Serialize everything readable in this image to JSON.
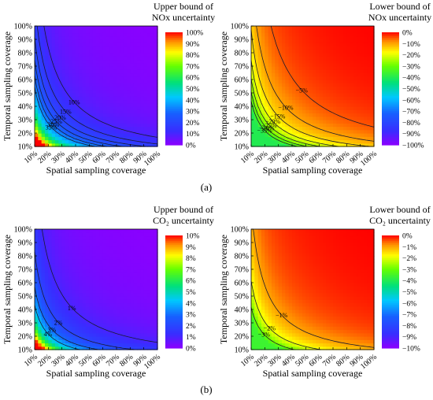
{
  "figure": {
    "panel_labels": [
      "(a)",
      "(b)"
    ]
  },
  "chart_data": [
    {
      "type": "heatmap",
      "colorbar_title": [
        "Upper bound of",
        "NOx uncertainty"
      ],
      "xlabel": "Spatial sampling coverage",
      "ylabel": "Temporal sampling coverage",
      "x_ticks": [
        "10%",
        "20%",
        "30%",
        "40%",
        "50%",
        "60%",
        "70%",
        "80%",
        "90%",
        "100%"
      ],
      "y_ticks": [
        "10%",
        "20%",
        "30%",
        "40%",
        "50%",
        "60%",
        "70%",
        "80%",
        "90%",
        "100%"
      ],
      "colorbar_ticks": [
        "100%",
        "90%",
        "80%",
        "70%",
        "60%",
        "50%",
        "40%",
        "30%",
        "20%",
        "10%",
        "0%"
      ],
      "colorbar_range": [
        0,
        100
      ],
      "colorbar_reversed": false,
      "model": {
        "max": 100,
        "c": 2
      },
      "contour_levels": [
        10,
        15,
        20,
        25,
        30,
        35
      ],
      "contour_labels": [
        "10%",
        "15%",
        "20%",
        "25%",
        "30%",
        "35%"
      ],
      "grid": false
    },
    {
      "type": "heatmap",
      "colorbar_title": [
        "Lower bound of",
        "NOx uncertainty"
      ],
      "xlabel": "Spatial sampling coverage",
      "ylabel": "Temporal sampling coverage",
      "x_ticks": [
        "10%",
        "20%",
        "30%",
        "40%",
        "50%",
        "60%",
        "70%",
        "80%",
        "90%",
        "100%"
      ],
      "y_ticks": [
        "10%",
        "20%",
        "30%",
        "40%",
        "50%",
        "60%",
        "70%",
        "80%",
        "90%",
        "100%"
      ],
      "colorbar_ticks": [
        "0%",
        "−10%",
        "−20%",
        "−30%",
        "−40%",
        "−50%",
        "−60%",
        "−70%",
        "−80%",
        "−90%",
        "−100%"
      ],
      "colorbar_range": [
        -100,
        0
      ],
      "colorbar_reversed": true,
      "model": {
        "max": 40,
        "c": 1.6
      },
      "contour_levels": [
        5,
        10,
        15,
        20,
        25,
        30,
        35
      ],
      "contour_labels": [
        "−5%",
        "−10%",
        "−15%",
        "−20%",
        "−25%",
        "−30%",
        "−35%"
      ],
      "grid": false
    },
    {
      "type": "heatmap",
      "colorbar_title": [
        "Upper bound of",
        "CO₂ uncertainty"
      ],
      "xlabel": "Spatial sampling coverage",
      "ylabel": "Temporal sampling coverage",
      "x_ticks": [
        "10%",
        "20%",
        "30%",
        "40%",
        "50%",
        "60%",
        "70%",
        "80%",
        "90%",
        "100%"
      ],
      "y_ticks": [
        "10%",
        "20%",
        "30%",
        "40%",
        "50%",
        "60%",
        "70%",
        "80%",
        "90%",
        "100%"
      ],
      "colorbar_ticks": [
        "10%",
        "9%",
        "8%",
        "7%",
        "6%",
        "5%",
        "4%",
        "3%",
        "2%",
        "1%",
        "0%"
      ],
      "colorbar_range": [
        0,
        10
      ],
      "colorbar_reversed": false,
      "model": {
        "max": 10,
        "c": 0.18
      },
      "contour_levels": [
        1,
        2,
        3,
        4
      ],
      "contour_labels": [
        "1%",
        "2%",
        "3%",
        "4%"
      ],
      "grid": false
    },
    {
      "type": "heatmap",
      "colorbar_title": [
        "Lower bound of",
        "CO₂ uncertainty"
      ],
      "xlabel": "Spatial sampling coverage",
      "ylabel": "Temporal sampling coverage",
      "x_ticks": [
        "10%",
        "20%",
        "30%",
        "40%",
        "50%",
        "60%",
        "70%",
        "80%",
        "90%",
        "100%"
      ],
      "y_ticks": [
        "10%",
        "20%",
        "30%",
        "40%",
        "50%",
        "60%",
        "70%",
        "80%",
        "90%",
        "100%"
      ],
      "colorbar_ticks": [
        "0%",
        "−1%",
        "−2%",
        "−3%",
        "−4%",
        "−5%",
        "−6%",
        "−7%",
        "−8%",
        "−9%",
        "−10%"
      ],
      "colorbar_range": [
        -10,
        0
      ],
      "colorbar_reversed": true,
      "model": {
        "max": 3.6,
        "c": 0.13
      },
      "contour_levels": [
        1,
        2,
        3
      ],
      "contour_labels": [
        "−1%",
        "−2%",
        "−3%"
      ],
      "grid": false
    }
  ]
}
